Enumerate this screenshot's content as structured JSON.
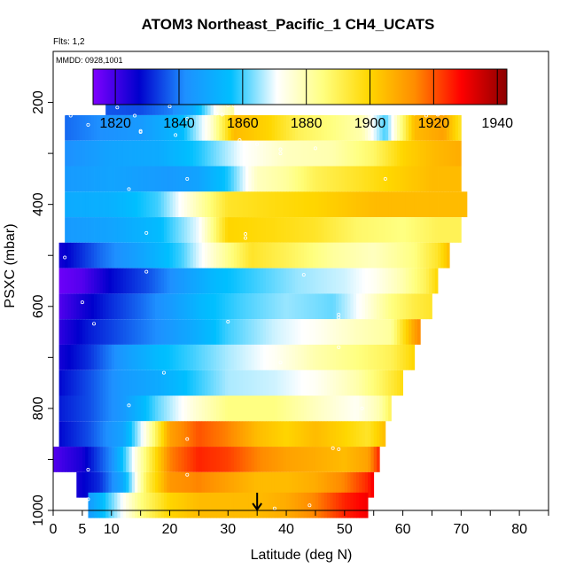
{
  "title": "ATOM3 Northeast_Pacific_1 CH4_UCATS",
  "flights_label": "Flts: 1,2",
  "date_label": "MMDD: 0928,1001",
  "chart_data": {
    "type": "heatmap",
    "xlabel": "Latitude (deg N)",
    "ylabel": "PSXC (mbar)",
    "xlim": [
      0,
      85
    ],
    "ylim": [
      1000,
      100
    ],
    "x_ticks": [
      0,
      5,
      10,
      20,
      30,
      40,
      50,
      60,
      70,
      80
    ],
    "y_ticks": [
      200,
      400,
      600,
      800,
      1000
    ],
    "colorbar": {
      "min": 1813,
      "max": 1943,
      "ticks": [
        1820,
        1840,
        1860,
        1880,
        1900,
        1920,
        1940
      ]
    },
    "colors": [
      "#7f00ff",
      "#0000cd",
      "#1e90ff",
      "#00bfff",
      "#ffffff",
      "#ffff80",
      "#ffd700",
      "#ff8c00",
      "#ff0000",
      "#8b0000"
    ],
    "marker_latitude": 35,
    "rows": [
      {
        "p": 200,
        "lat_start": 9,
        "lat_end": 31,
        "points": [
          [
            9,
            1836
          ],
          [
            15,
            1835
          ],
          [
            20,
            1840
          ],
          [
            24,
            1850
          ],
          [
            28,
            1872
          ],
          [
            31,
            1882
          ]
        ]
      },
      {
        "p": 250,
        "lat_start": 2,
        "lat_end": 70,
        "points": [
          [
            2,
            1838
          ],
          [
            8,
            1842
          ],
          [
            15,
            1845
          ],
          [
            22,
            1855
          ],
          [
            27,
            1875
          ],
          [
            31,
            1905
          ],
          [
            37,
            1900
          ],
          [
            42,
            1890
          ],
          [
            48,
            1885
          ],
          [
            53,
            1880
          ],
          [
            57,
            1860
          ],
          [
            62,
            1905
          ],
          [
            67,
            1910
          ],
          [
            70,
            1895
          ]
        ]
      },
      {
        "p": 300,
        "lat_start": 2,
        "lat_end": 70,
        "points": [
          [
            2,
            1842
          ],
          [
            10,
            1848
          ],
          [
            18,
            1850
          ],
          [
            25,
            1858
          ],
          [
            32,
            1870
          ],
          [
            40,
            1878
          ],
          [
            48,
            1880
          ],
          [
            55,
            1888
          ],
          [
            60,
            1900
          ],
          [
            65,
            1905
          ],
          [
            70,
            1908
          ]
        ]
      },
      {
        "p": 350,
        "lat_start": 2,
        "lat_end": 70,
        "points": [
          [
            2,
            1845
          ],
          [
            10,
            1848
          ],
          [
            20,
            1845
          ],
          [
            25,
            1848
          ],
          [
            30,
            1858
          ],
          [
            35,
            1878
          ],
          [
            40,
            1882
          ],
          [
            45,
            1890
          ],
          [
            52,
            1895
          ],
          [
            58,
            1900
          ],
          [
            65,
            1905
          ],
          [
            70,
            1905
          ]
        ]
      },
      {
        "p": 400,
        "lat_start": 2,
        "lat_end": 71,
        "points": [
          [
            2,
            1850
          ],
          [
            10,
            1852
          ],
          [
            18,
            1860
          ],
          [
            25,
            1880
          ],
          [
            30,
            1895
          ],
          [
            38,
            1898
          ],
          [
            45,
            1900
          ],
          [
            55,
            1905
          ],
          [
            62,
            1905
          ],
          [
            68,
            1905
          ],
          [
            71,
            1905
          ]
        ]
      },
      {
        "p": 450,
        "lat_start": 2,
        "lat_end": 70,
        "points": [
          [
            2,
            1845
          ],
          [
            10,
            1848
          ],
          [
            18,
            1855
          ],
          [
            25,
            1870
          ],
          [
            30,
            1900
          ],
          [
            38,
            1898
          ],
          [
            45,
            1895
          ],
          [
            52,
            1888
          ],
          [
            60,
            1885
          ],
          [
            66,
            1890
          ],
          [
            70,
            1890
          ]
        ]
      },
      {
        "p": 500,
        "lat_start": 1,
        "lat_end": 68,
        "points": [
          [
            1,
            1825
          ],
          [
            8,
            1838
          ],
          [
            15,
            1848
          ],
          [
            22,
            1860
          ],
          [
            28,
            1878
          ],
          [
            34,
            1895
          ],
          [
            40,
            1890
          ],
          [
            48,
            1882
          ],
          [
            55,
            1878
          ],
          [
            62,
            1885
          ],
          [
            66,
            1895
          ],
          [
            68,
            1905
          ]
        ]
      },
      {
        "p": 550,
        "lat_start": 1,
        "lat_end": 66,
        "points": [
          [
            1,
            1815
          ],
          [
            5,
            1818
          ],
          [
            10,
            1828
          ],
          [
            16,
            1835
          ],
          [
            22,
            1845
          ],
          [
            28,
            1855
          ],
          [
            35,
            1860
          ],
          [
            42,
            1865
          ],
          [
            50,
            1868
          ],
          [
            55,
            1872
          ],
          [
            60,
            1880
          ],
          [
            64,
            1890
          ],
          [
            66,
            1900
          ]
        ]
      },
      {
        "p": 600,
        "lat_start": 1,
        "lat_end": 65,
        "points": [
          [
            1,
            1818
          ],
          [
            5,
            1825
          ],
          [
            10,
            1832
          ],
          [
            15,
            1838
          ],
          [
            20,
            1845
          ],
          [
            26,
            1855
          ],
          [
            32,
            1860
          ],
          [
            40,
            1865
          ],
          [
            48,
            1862
          ],
          [
            53,
            1872
          ],
          [
            58,
            1885
          ],
          [
            62,
            1892
          ],
          [
            65,
            1895
          ]
        ]
      },
      {
        "p": 650,
        "lat_start": 1,
        "lat_end": 63,
        "points": [
          [
            1,
            1822
          ],
          [
            6,
            1830
          ],
          [
            12,
            1836
          ],
          [
            18,
            1842
          ],
          [
            24,
            1850
          ],
          [
            30,
            1860
          ],
          [
            38,
            1868
          ],
          [
            45,
            1872
          ],
          [
            52,
            1878
          ],
          [
            58,
            1882
          ],
          [
            62,
            1910
          ],
          [
            63,
            1915
          ]
        ]
      },
      {
        "p": 700,
        "lat_start": 1,
        "lat_end": 62,
        "points": [
          [
            1,
            1825
          ],
          [
            6,
            1832
          ],
          [
            12,
            1845
          ],
          [
            18,
            1855
          ],
          [
            24,
            1860
          ],
          [
            30,
            1866
          ],
          [
            38,
            1872
          ],
          [
            45,
            1880
          ],
          [
            52,
            1885
          ],
          [
            58,
            1890
          ],
          [
            62,
            1900
          ]
        ]
      },
      {
        "p": 750,
        "lat_start": 1,
        "lat_end": 60,
        "points": [
          [
            1,
            1828
          ],
          [
            6,
            1835
          ],
          [
            12,
            1845
          ],
          [
            18,
            1850
          ],
          [
            24,
            1858
          ],
          [
            30,
            1866
          ],
          [
            38,
            1868
          ],
          [
            45,
            1872
          ],
          [
            52,
            1880
          ],
          [
            56,
            1888
          ],
          [
            60,
            1898
          ]
        ]
      },
      {
        "p": 800,
        "lat_start": 1,
        "lat_end": 58,
        "points": [
          [
            1,
            1830
          ],
          [
            6,
            1835
          ],
          [
            12,
            1845
          ],
          [
            18,
            1862
          ],
          [
            24,
            1875
          ],
          [
            30,
            1885
          ],
          [
            38,
            1885
          ],
          [
            45,
            1878
          ],
          [
            52,
            1872
          ],
          [
            56,
            1880
          ],
          [
            58,
            1890
          ]
        ]
      },
      {
        "p": 850,
        "lat_start": 1,
        "lat_end": 57,
        "points": [
          [
            1,
            1828
          ],
          [
            6,
            1835
          ],
          [
            12,
            1848
          ],
          [
            16,
            1875
          ],
          [
            20,
            1910
          ],
          [
            25,
            1920
          ],
          [
            30,
            1915
          ],
          [
            35,
            1905
          ],
          [
            40,
            1900
          ],
          [
            45,
            1905
          ],
          [
            50,
            1900
          ],
          [
            54,
            1895
          ],
          [
            57,
            1905
          ]
        ]
      },
      {
        "p": 900,
        "lat_start": 0,
        "lat_end": 56,
        "points": [
          [
            0,
            1818
          ],
          [
            5,
            1825
          ],
          [
            10,
            1842
          ],
          [
            15,
            1880
          ],
          [
            20,
            1915
          ],
          [
            25,
            1925
          ],
          [
            30,
            1922
          ],
          [
            35,
            1915
          ],
          [
            40,
            1910
          ],
          [
            45,
            1908
          ],
          [
            50,
            1905
          ],
          [
            54,
            1910
          ],
          [
            56,
            1925
          ]
        ]
      },
      {
        "p": 950,
        "lat_start": 4,
        "lat_end": 55,
        "points": [
          [
            4,
            1825
          ],
          [
            8,
            1832
          ],
          [
            12,
            1850
          ],
          [
            16,
            1890
          ],
          [
            20,
            1912
          ],
          [
            25,
            1915
          ],
          [
            30,
            1910
          ],
          [
            35,
            1905
          ],
          [
            40,
            1905
          ],
          [
            45,
            1908
          ],
          [
            50,
            1915
          ],
          [
            54,
            1925
          ],
          [
            55,
            1930
          ]
        ]
      },
      {
        "p": 990,
        "lat_start": 6,
        "lat_end": 54,
        "points": [
          [
            6,
            1845
          ],
          [
            10,
            1862
          ],
          [
            15,
            1885
          ],
          [
            20,
            1900
          ],
          [
            25,
            1905
          ],
          [
            30,
            1905
          ],
          [
            35,
            1905
          ],
          [
            40,
            1908
          ],
          [
            45,
            1915
          ],
          [
            50,
            1925
          ],
          [
            54,
            1930
          ]
        ]
      }
    ],
    "samples": [
      [
        2,
        222
      ],
      [
        3,
        226
      ],
      [
        6,
        244
      ],
      [
        11,
        210
      ],
      [
        14,
        226
      ],
      [
        20,
        208
      ],
      [
        23,
        232
      ],
      [
        28,
        222
      ],
      [
        29,
        224
      ],
      [
        30,
        206
      ],
      [
        31,
        206
      ],
      [
        62,
        222
      ],
      [
        64,
        226
      ],
      [
        66,
        224
      ],
      [
        67,
        222
      ],
      [
        15,
        256
      ],
      [
        15,
        258
      ],
      [
        21,
        264
      ],
      [
        32,
        274
      ],
      [
        35,
        282
      ],
      [
        45,
        290
      ],
      [
        39,
        292
      ],
      [
        39,
        300
      ],
      [
        23,
        350
      ],
      [
        57,
        350
      ],
      [
        13,
        370
      ],
      [
        71,
        370
      ],
      [
        16,
        456
      ],
      [
        33,
        458
      ],
      [
        33,
        466
      ],
      [
        2,
        504
      ],
      [
        16,
        532
      ],
      [
        43,
        538
      ],
      [
        5,
        592
      ],
      [
        49,
        616
      ],
      [
        49,
        622
      ],
      [
        7,
        634
      ],
      [
        30,
        630
      ],
      [
        49,
        680
      ],
      [
        39,
        710
      ],
      [
        19,
        730
      ],
      [
        13,
        794
      ],
      [
        53,
        800
      ],
      [
        60,
        810
      ],
      [
        23,
        860
      ],
      [
        48,
        878
      ],
      [
        49,
        880
      ],
      [
        6,
        920
      ],
      [
        23,
        930
      ],
      [
        6,
        978
      ],
      [
        38,
        996
      ],
      [
        44,
        990
      ]
    ]
  }
}
